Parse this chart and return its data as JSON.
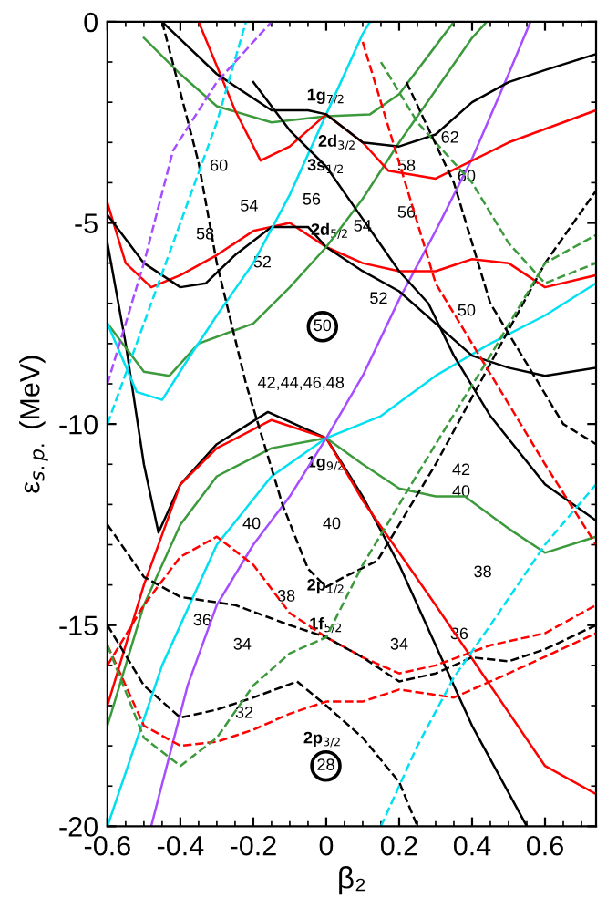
{
  "chart_data": {
    "type": "line",
    "xlabel": "β₂",
    "ylabel": "ε$_{s.p.}$ (MeV)",
    "xlim": [
      -0.6,
      0.74
    ],
    "ylim": [
      -20,
      0
    ],
    "xticks": [
      -0.6,
      -0.4,
      -0.2,
      0,
      0.2,
      0.4,
      0.6
    ],
    "yticks": [
      -20,
      -15,
      -10,
      -5,
      0
    ],
    "grid": false,
    "series": [
      {
        "color": "#000000",
        "line_style": "solid",
        "x": [
          -0.6,
          -0.55,
          -0.5,
          -0.46,
          -0.4,
          -0.3,
          -0.16,
          0,
          0.1,
          0.2,
          0.3,
          0.4,
          0.55
        ],
        "values": [
          -5.5,
          -8,
          -11,
          -12.7,
          -11.5,
          -10.5,
          -9.7,
          -10.35,
          -11.8,
          -13.5,
          -15.5,
          -17.5,
          -20
        ]
      },
      {
        "color": "#ff0000",
        "line_style": "solid",
        "x": [
          -0.6,
          -0.5,
          -0.4,
          -0.3,
          -0.15,
          0,
          0.1,
          0.2,
          0.3,
          0.45,
          0.6,
          0.74
        ],
        "values": [
          -17,
          -14,
          -11.5,
          -10.6,
          -9.9,
          -10.35,
          -11.9,
          -13.2,
          -14.5,
          -16.5,
          -18.5,
          -19.2
        ]
      },
      {
        "color": "#3c9a3c",
        "line_style": "solid",
        "x": [
          -0.6,
          -0.5,
          -0.4,
          -0.3,
          -0.15,
          0,
          0.1,
          0.2,
          0.3,
          0.38,
          0.5,
          0.6,
          0.74
        ],
        "values": [
          -17.5,
          -14.5,
          -12.5,
          -11.3,
          -10.6,
          -10.35,
          -11,
          -11.6,
          -11.8,
          -11.8,
          -12.6,
          -13.2,
          -12.8
        ]
      },
      {
        "color": "#00e0f0",
        "line_style": "solid",
        "x": [
          -0.6,
          -0.45,
          -0.3,
          -0.15,
          0,
          0.15,
          0.3,
          0.45,
          0.6,
          0.74
        ],
        "values": [
          -20,
          -16,
          -13,
          -11.3,
          -10.35,
          -9.8,
          -8.8,
          -8,
          -7.3,
          -6.5
        ]
      },
      {
        "color": "#a64dff",
        "line_style": "solid",
        "x": [
          -0.48,
          -0.38,
          -0.3,
          -0.2,
          -0.1,
          0,
          0.1,
          0.2,
          0.3,
          0.4,
          0.5,
          0.56
        ],
        "values": [
          -20,
          -16.5,
          -14.5,
          -13,
          -11.8,
          -10.35,
          -8.8,
          -6.9,
          -5.2,
          -3.4,
          -1.3,
          0
        ]
      },
      {
        "color": "#ff0000",
        "line_style": "solid",
        "x": [
          -0.6,
          -0.55,
          -0.48,
          -0.4,
          -0.3,
          -0.2,
          -0.1,
          0,
          0.1,
          0.2,
          0.3,
          0.4,
          0.5,
          0.6,
          0.74
        ],
        "values": [
          -4.5,
          -6,
          -6.6,
          -6.3,
          -5.8,
          -5.2,
          -5,
          -5.6,
          -6,
          -6.2,
          -6.2,
          -5.9,
          -6,
          -6.6,
          -6.3
        ]
      },
      {
        "color": "#000000",
        "line_style": "solid",
        "x": [
          -0.6,
          -0.5,
          -0.4,
          -0.33,
          -0.25,
          -0.15,
          -0.05,
          0,
          0.1,
          0.2,
          0.3,
          0.4,
          0.5,
          0.6,
          0.74
        ],
        "values": [
          -4.8,
          -6,
          -6.6,
          -6.5,
          -5.8,
          -5.1,
          -5.1,
          -5.6,
          -6.2,
          -6.7,
          -7.5,
          -8.3,
          -8.6,
          -8.8,
          -8.6
        ]
      },
      {
        "color": "#3c9a3c",
        "line_style": "solid",
        "x": [
          -0.6,
          -0.5,
          -0.43,
          -0.35,
          -0.2,
          -0.1,
          0,
          0.1,
          0.2,
          0.3,
          0.4,
          0.44
        ],
        "values": [
          -7.5,
          -8.7,
          -8.8,
          -8,
          -7.5,
          -6.6,
          -5.6,
          -4.4,
          -3,
          -1.7,
          -0.4,
          0
        ]
      },
      {
        "color": "#00e0f0",
        "line_style": "solid",
        "x": [
          -0.6,
          -0.52,
          -0.45,
          -0.38,
          -0.3,
          -0.2,
          -0.1,
          0,
          0.1,
          0.12
        ],
        "values": [
          -7.5,
          -9.2,
          -9.4,
          -8.4,
          -7.3,
          -6,
          -4.3,
          -2.3,
          -0.3,
          0
        ]
      },
      {
        "color": "#3c9a3c",
        "line_style": "solid",
        "x": [
          -0.5,
          -0.4,
          -0.3,
          -0.15,
          0,
          0.12,
          0.2,
          0.3,
          0.35
        ],
        "values": [
          -0.4,
          -1.3,
          -2.1,
          -2.5,
          -2.35,
          -2.3,
          -1.8,
          -0.6,
          0
        ]
      },
      {
        "color": "#ff0000",
        "line_style": "solid",
        "x": [
          -0.35,
          -0.25,
          -0.18,
          -0.1,
          0,
          0.1,
          0.17,
          0.3,
          0.5,
          0.74
        ],
        "values": [
          0,
          -2.2,
          -3.45,
          -3.1,
          -2.3,
          -3,
          -3.7,
          -3.9,
          -3,
          -2.2
        ]
      },
      {
        "color": "#000000",
        "line_style": "solid",
        "x": [
          -0.45,
          -0.3,
          -0.15,
          -0.05,
          0,
          0.1,
          0.2,
          0.3,
          0.4,
          0.5,
          0.6,
          0.74
        ],
        "values": [
          0,
          -1.3,
          -2.2,
          -2.2,
          -2.3,
          -3,
          -3.1,
          -2.8,
          -2,
          -1.5,
          -1.2,
          -0.8
        ]
      },
      {
        "color": "#000000",
        "line_style": "solid",
        "x": [
          -0.2,
          -0.1,
          0,
          0.1,
          0.2,
          0.28,
          0.35,
          0.45,
          0.6,
          0.74
        ],
        "values": [
          -1.5,
          -2.7,
          -3.6,
          -4.9,
          -6.2,
          -7,
          -8.3,
          -9.8,
          -11.5,
          -12.4
        ]
      },
      {
        "color": "#000000",
        "line_style": "dashed",
        "x": [
          -0.45,
          -0.35,
          -0.3,
          -0.22,
          -0.12,
          -0.05,
          0,
          0.05,
          0.14,
          0.3,
          0.45,
          0.6,
          0.74
        ],
        "values": [
          0,
          -3.5,
          -6,
          -9,
          -12,
          -13.6,
          -14.05,
          -13.8,
          -13.4,
          -11,
          -8.5,
          -6,
          -4.2
        ]
      },
      {
        "color": "#ff0000",
        "line_style": "dashed",
        "x": [
          -0.6,
          -0.5,
          -0.4,
          -0.3,
          -0.2,
          -0.1,
          0,
          0.1,
          0.2,
          0.3,
          0.45,
          0.6,
          0.74
        ],
        "values": [
          -16,
          -14.5,
          -13.3,
          -12.8,
          -13.5,
          -14.7,
          -15.3,
          -15.8,
          -16.2,
          -16,
          -15.5,
          -15.2,
          -14.5
        ]
      },
      {
        "color": "#000000",
        "line_style": "dashed",
        "x": [
          -0.6,
          -0.5,
          -0.4,
          -0.25,
          -0.1,
          0,
          0.1,
          0.2,
          0.3,
          0.4,
          0.5,
          0.6,
          0.74
        ],
        "values": [
          -12.5,
          -13.8,
          -14.3,
          -14.5,
          -15,
          -15.3,
          -15.8,
          -16.4,
          -16.2,
          -15.8,
          -15.9,
          -15.6,
          -15
        ]
      },
      {
        "color": "#000000",
        "line_style": "dashed",
        "x": [
          -0.6,
          -0.5,
          -0.4,
          -0.3,
          -0.2,
          -0.08,
          0,
          0.1,
          0.2,
          0.25
        ],
        "values": [
          -15,
          -16.5,
          -17.3,
          -17.1,
          -16.8,
          -16.4,
          -17,
          -17.8,
          -18.9,
          -20
        ]
      },
      {
        "color": "#ff0000",
        "line_style": "dashed",
        "x": [
          -0.6,
          -0.5,
          -0.4,
          -0.3,
          -0.2,
          -0.1,
          0,
          0.1,
          0.2,
          0.35,
          0.5,
          0.74
        ],
        "values": [
          -15.5,
          -17.5,
          -18,
          -17.9,
          -17.6,
          -17.2,
          -16.9,
          -16.9,
          -16.6,
          -16.8,
          -16.2,
          -15.2
        ]
      },
      {
        "color": "#3c9a3c",
        "line_style": "dashed",
        "x": [
          -0.6,
          -0.5,
          -0.4,
          -0.3,
          -0.2,
          -0.1,
          0,
          0.1,
          0.2,
          0.3,
          0.45,
          0.6,
          0.74
        ],
        "values": [
          -15.5,
          -17.8,
          -18.5,
          -17.8,
          -16.5,
          -15.7,
          -15.3,
          -13.5,
          -12,
          -10.5,
          -8.3,
          -6,
          -5.3
        ]
      },
      {
        "color": "#00e0f0",
        "line_style": "dashed",
        "x": [
          0.15,
          0.25,
          0.35,
          0.45,
          0.6,
          0.74
        ],
        "values": [
          -20,
          -18,
          -16.3,
          -15,
          -13,
          -11.5
        ]
      },
      {
        "color": "#00e0f0",
        "line_style": "dashed",
        "x": [
          -0.6,
          -0.5,
          -0.4,
          -0.3,
          -0.22
        ],
        "values": [
          -10,
          -7.5,
          -5,
          -2.5,
          0
        ]
      },
      {
        "color": "#a64dff",
        "line_style": "dashed",
        "x": [
          -0.6,
          -0.5,
          -0.42,
          -0.3,
          -0.15
        ],
        "values": [
          -9,
          -6,
          -3.2,
          -1.5,
          0
        ]
      },
      {
        "color": "#ff0000",
        "line_style": "dashed",
        "x": [
          0.1,
          0.2,
          0.3,
          0.4,
          0.5,
          0.6,
          0.74
        ],
        "values": [
          -0.5,
          -3.5,
          -6.5,
          -8,
          -9.5,
          -11,
          -13
        ]
      },
      {
        "color": "#3c9a3c",
        "line_style": "dashed",
        "x": [
          0.15,
          0.25,
          0.4,
          0.5,
          0.6,
          0.74
        ],
        "values": [
          -1,
          -2.5,
          -4,
          -5.5,
          -6.5,
          -6
        ]
      },
      {
        "color": "#000000",
        "line_style": "dashed",
        "x": [
          0.22,
          0.35,
          0.45,
          0.55,
          0.65,
          0.74
        ],
        "values": [
          -1.5,
          -4,
          -7,
          -8.5,
          -10,
          -10.5
        ]
      }
    ],
    "annotations": [
      "1g$_{7/2}$",
      "2d$_{3/2}$",
      "3s$_{1/2}$",
      "2d$_{5/2}$",
      "60",
      "56",
      "58",
      "54",
      "52",
      "54",
      "58",
      "62",
      "60",
      "56",
      "52",
      "50",
      "50",
      "42,44,46,48",
      "1g$_{9/2}$",
      "42",
      "40",
      "40",
      "40",
      "38",
      "2p$_{1/2}$",
      "38",
      "36",
      "34",
      "1f$_{5/2}$",
      "34",
      "36",
      "32",
      "2p$_{3/2}$",
      "28"
    ]
  }
}
